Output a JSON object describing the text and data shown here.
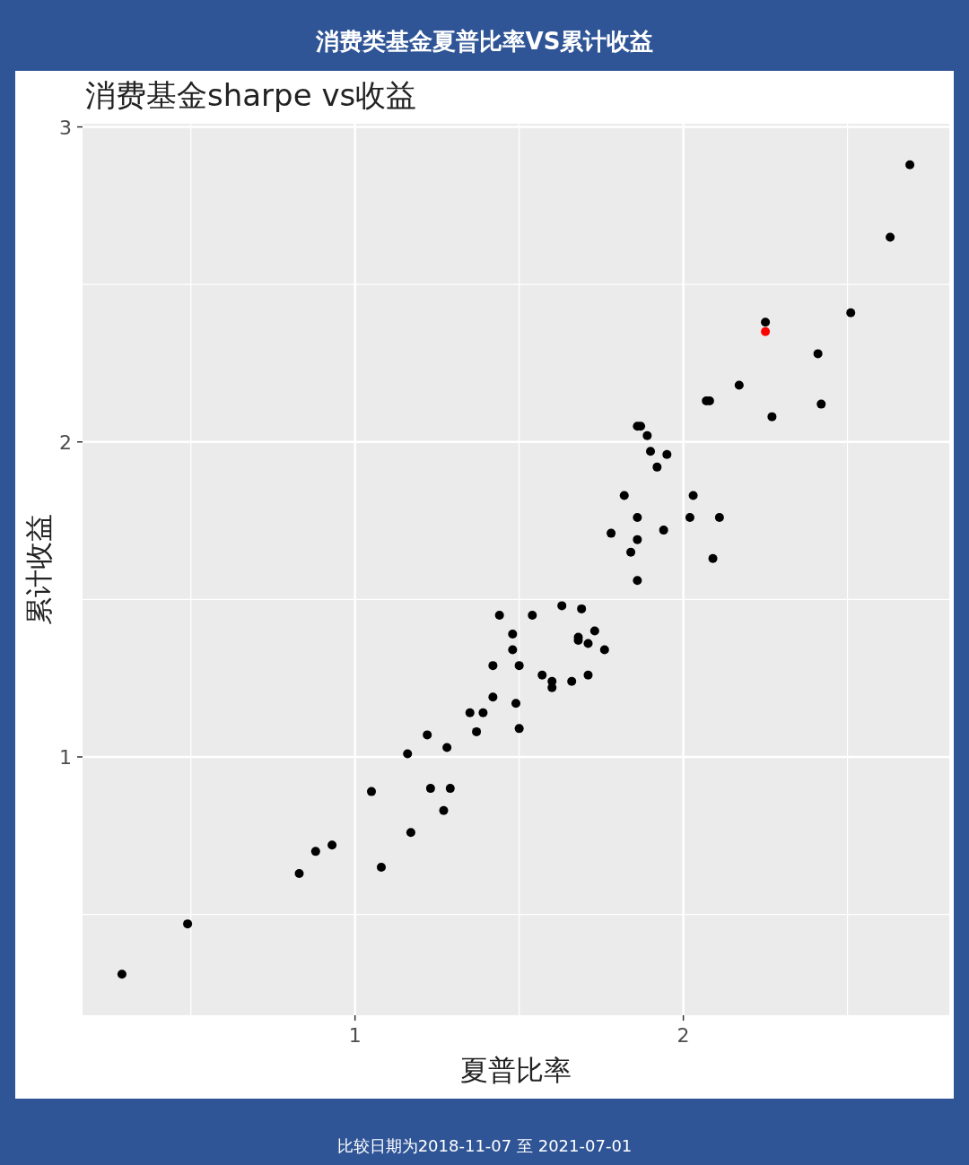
{
  "chart_data": {
    "type": "scatter",
    "title": "消费类基金夏普比率VS累计收益",
    "subtitle": "消费基金sharpe vs收益",
    "xlabel": "夏普比率",
    "ylabel": "累计收益",
    "annotations": [
      "比较日期为2018-11-07 至 2021-07-01"
    ],
    "xlim": [
      0.17,
      2.81
    ],
    "ylim": [
      0.18,
      3.01
    ],
    "xticks": [
      1,
      2
    ],
    "yticks": [
      1,
      2,
      3
    ],
    "grid": true,
    "marker": "circle",
    "series": [
      {
        "color": "#000000",
        "x": [
          0.29,
          0.49,
          0.83,
          0.88,
          0.93,
          1.05,
          1.08,
          1.16,
          1.17,
          1.22,
          1.23,
          1.27,
          1.28,
          1.29,
          1.35,
          1.37,
          1.39,
          1.42,
          1.42,
          1.44,
          1.48,
          1.48,
          1.49,
          1.5,
          1.5,
          1.54,
          1.57,
          1.6,
          1.6,
          1.63,
          1.66,
          1.68,
          1.68,
          1.69,
          1.71,
          1.71,
          1.73,
          1.76,
          1.78,
          1.82,
          1.84,
          1.86,
          1.86,
          1.86,
          1.86,
          1.87,
          1.89,
          1.9,
          1.92,
          1.94,
          1.95,
          2.02,
          2.03,
          2.07,
          2.08,
          2.09,
          2.11,
          2.17,
          2.25,
          2.27,
          2.41,
          2.42,
          2.51,
          2.63,
          2.69
        ],
        "values": [
          0.31,
          0.47,
          0.63,
          0.7,
          0.72,
          0.89,
          0.65,
          1.01,
          0.76,
          1.07,
          0.9,
          0.83,
          1.03,
          0.9,
          1.14,
          1.08,
          1.14,
          1.19,
          1.29,
          1.45,
          1.39,
          1.34,
          1.17,
          1.09,
          1.29,
          1.45,
          1.26,
          1.22,
          1.24,
          1.48,
          1.24,
          1.37,
          1.38,
          1.47,
          1.36,
          1.26,
          1.4,
          1.34,
          1.71,
          1.83,
          1.65,
          1.76,
          1.56,
          2.05,
          1.69,
          2.05,
          2.02,
          1.97,
          1.92,
          1.72,
          1.96,
          1.76,
          1.83,
          2.13,
          2.13,
          1.63,
          1.76,
          2.18,
          2.38,
          2.08,
          2.28,
          2.12,
          2.41,
          2.65,
          2.88
        ]
      },
      {
        "color": "#ff0000",
        "x": [
          2.25
        ],
        "values": [
          2.35
        ]
      }
    ]
  }
}
